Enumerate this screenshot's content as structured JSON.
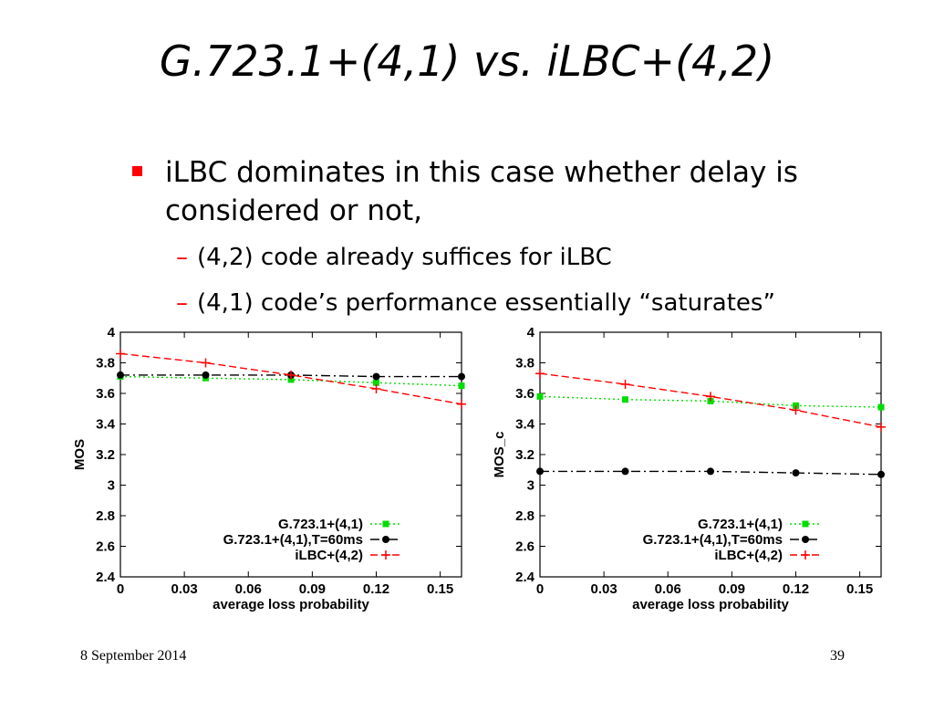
{
  "slide": {
    "title": "G.723.1+(4,1) vs. iLBC+(4,2)",
    "bullet": "iLBC dominates in this case whether delay is considered or not,",
    "subbullets": [
      "(4,2) code already suffices for iLBC",
      "(4,1) code’s performance essentially “saturates”"
    ],
    "dash": "–",
    "footer_date": "8 September 2014",
    "page_number": "39"
  },
  "colors": {
    "accent": "#ff0000",
    "green": "#00dd00",
    "black": "#000000",
    "red": "#ff0000"
  },
  "chart_data": [
    {
      "type": "line",
      "xlabel": "average loss probability",
      "ylabel": "MOS",
      "xlim": [
        0,
        0.16
      ],
      "ylim": [
        2.4,
        4.0
      ],
      "x_ticks": [
        "0",
        "0.03",
        "0.06",
        "0.09",
        "0.12",
        "0.15"
      ],
      "y_ticks": [
        "2.4",
        "2.6",
        "2.8",
        "3",
        "3.2",
        "3.4",
        "3.6",
        "3.8",
        "4"
      ],
      "legend_position": "bottom-right",
      "series": [
        {
          "name": "G.723.1+(4,1)",
          "style": "green-dotted-square",
          "x": [
            0,
            0.04,
            0.08,
            0.12,
            0.16
          ],
          "y": [
            3.71,
            3.7,
            3.69,
            3.67,
            3.65
          ]
        },
        {
          "name": "G.723.1+(4,1),T=60ms",
          "style": "black-dashdot-circle",
          "x": [
            0,
            0.04,
            0.08,
            0.12,
            0.16
          ],
          "y": [
            3.72,
            3.72,
            3.72,
            3.71,
            3.71
          ]
        },
        {
          "name": "iLBC+(4,2)",
          "style": "red-dashed-plus",
          "x": [
            0,
            0.04,
            0.08,
            0.12,
            0.16
          ],
          "y": [
            3.86,
            3.8,
            3.72,
            3.63,
            3.53
          ]
        }
      ]
    },
    {
      "type": "line",
      "xlabel": "average loss probability",
      "ylabel": "MOS_c",
      "xlim": [
        0,
        0.16
      ],
      "ylim": [
        2.4,
        4.0
      ],
      "x_ticks": [
        "0",
        "0.03",
        "0.06",
        "0.09",
        "0.12",
        "0.15"
      ],
      "y_ticks": [
        "2.4",
        "2.6",
        "2.8",
        "3",
        "3.2",
        "3.4",
        "3.6",
        "3.8",
        "4"
      ],
      "legend_position": "bottom-right",
      "series": [
        {
          "name": "G.723.1+(4,1)",
          "style": "green-dotted-square",
          "x": [
            0,
            0.04,
            0.08,
            0.12,
            0.16
          ],
          "y": [
            3.58,
            3.56,
            3.55,
            3.52,
            3.51
          ]
        },
        {
          "name": "G.723.1+(4,1),T=60ms",
          "style": "black-dashdot-circle",
          "x": [
            0,
            0.04,
            0.08,
            0.12,
            0.16
          ],
          "y": [
            3.09,
            3.09,
            3.09,
            3.08,
            3.07
          ]
        },
        {
          "name": "iLBC+(4,2)",
          "style": "red-dashed-plus",
          "x": [
            0,
            0.04,
            0.08,
            0.12,
            0.16
          ],
          "y": [
            3.73,
            3.66,
            3.58,
            3.49,
            3.38
          ]
        }
      ]
    }
  ]
}
